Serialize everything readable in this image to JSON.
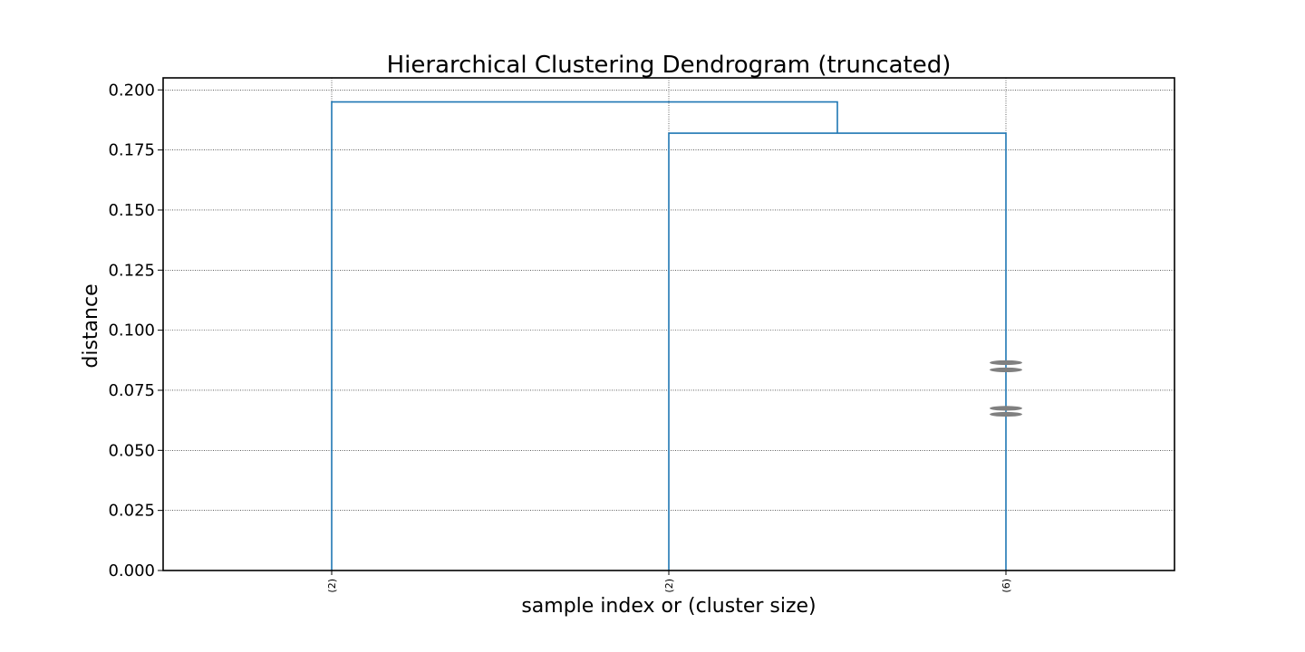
{
  "chart_data": {
    "type": "dendrogram",
    "title": "Hierarchical Clustering Dendrogram (truncated)",
    "xlabel": "sample index or (cluster size)",
    "ylabel": "distance",
    "ylim": [
      0,
      0.205
    ],
    "yticks": [
      0.0,
      0.025,
      0.05,
      0.075,
      0.1,
      0.125,
      0.15,
      0.175,
      0.2
    ],
    "ytick_labels": [
      "0.000",
      "0.025",
      "0.050",
      "0.075",
      "0.100",
      "0.125",
      "0.150",
      "0.175",
      "0.200"
    ],
    "leaves": [
      "(2)",
      "(2)",
      "(6)"
    ],
    "merges": [
      {
        "left": 1,
        "right": 2,
        "height": 0.182
      },
      {
        "left": 0,
        "right": "m0",
        "height": 0.195
      }
    ],
    "truncated_merge_marks": [
      {
        "leaf": 2,
        "height": 0.0865
      },
      {
        "leaf": 2,
        "height": 0.0835
      },
      {
        "leaf": 2,
        "height": 0.0675
      },
      {
        "leaf": 2,
        "height": 0.065
      }
    ],
    "grid": true,
    "link_color": "#1f77b4",
    "mark_color": "#808080"
  }
}
